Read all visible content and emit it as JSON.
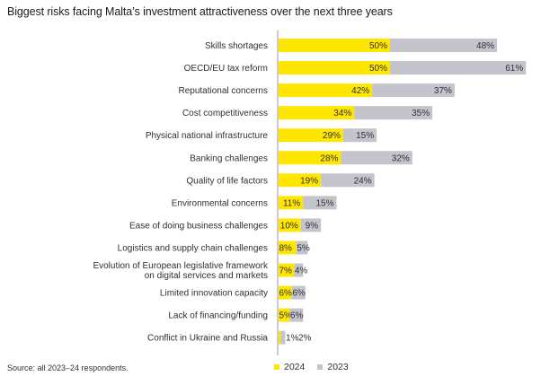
{
  "chart_data": {
    "type": "bar",
    "orientation": "horizontal",
    "stacked": true,
    "title": "Biggest risks facing Malta’s investment attractiveness over the next three years",
    "xlabel": "",
    "ylabel": "",
    "grid": false,
    "legend_position": "bottom",
    "value_suffix": "%",
    "categories": [
      [
        "Skills shortages"
      ],
      [
        "OECD/EU tax reform"
      ],
      [
        "Reputational concerns"
      ],
      [
        "Cost competitiveness"
      ],
      [
        "Physical national infrastructure"
      ],
      [
        "Banking challenges"
      ],
      [
        "Quality of life factors"
      ],
      [
        "Environmental concerns"
      ],
      [
        "Ease of doing business challenges"
      ],
      [
        "Logistics and supply chain challenges"
      ],
      [
        "Evolution of European legislative framework",
        "on digital services and markets"
      ],
      [
        "Limited innovation capacity"
      ],
      [
        "Lack of financing/funding"
      ],
      [
        "Conflict in Ukraine and Russia"
      ]
    ],
    "series": [
      {
        "name": "2024",
        "color": "#FFE600",
        "values": [
          50,
          50,
          42,
          34,
          29,
          28,
          19,
          11,
          10,
          8,
          7,
          6,
          5,
          1
        ]
      },
      {
        "name": "2023",
        "color": "#C4C4CD",
        "values": [
          48,
          61,
          37,
          35,
          15,
          32,
          24,
          15,
          9,
          5,
          4,
          6,
          6,
          2
        ]
      }
    ]
  },
  "source": "Source: all 2023–24 respondents.",
  "legend": [
    {
      "label": "2024",
      "color": "#FFE600"
    },
    {
      "label": "2023",
      "color": "#C4C4CD"
    }
  ]
}
